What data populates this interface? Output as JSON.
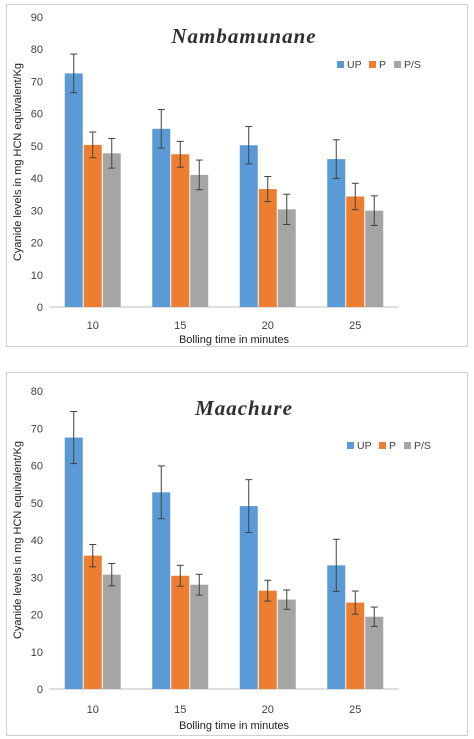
{
  "colors": {
    "UP": "#5b9bd5",
    "P": "#ed7d31",
    "P/S": "#a5a5a5",
    "error_bar": "#404040",
    "axis": "#bfbfbf"
  },
  "chart_data": [
    {
      "type": "bar",
      "title": "Nambamunane",
      "xlabel": "Bolling time in minutes",
      "ylabel": "Cyanide levels in mg HCN equivalent/Kg",
      "categories": [
        "10",
        "15",
        "20",
        "25"
      ],
      "ylim": [
        0,
        90
      ],
      "yticks": [
        0,
        10,
        20,
        30,
        40,
        50,
        60,
        70,
        80,
        90
      ],
      "grid": false,
      "legend_position": "top-right",
      "series": [
        {
          "name": "UP",
          "values": [
            72.5,
            55.3,
            50.2,
            45.9
          ],
          "errors": [
            6.0,
            6.0,
            5.8,
            6.0
          ]
        },
        {
          "name": "P",
          "values": [
            50.3,
            47.4,
            36.6,
            34.3
          ],
          "errors": [
            4.0,
            4.0,
            3.9,
            4.1
          ]
        },
        {
          "name": "P/S",
          "values": [
            47.7,
            41.0,
            30.3,
            29.9
          ],
          "errors": [
            4.6,
            4.6,
            4.7,
            4.6
          ]
        }
      ]
    },
    {
      "type": "bar",
      "title": "Maachure",
      "xlabel": "Bolling time in minutes",
      "ylabel": "Cyanide levels in mg HCN equivalent/Kg",
      "categories": [
        "10",
        "15",
        "20",
        "25"
      ],
      "ylim": [
        0,
        80
      ],
      "yticks": [
        0,
        10,
        20,
        30,
        40,
        50,
        60,
        70,
        80
      ],
      "grid": false,
      "legend_position": "top-right",
      "series": [
        {
          "name": "UP",
          "values": [
            67.5,
            52.8,
            49.1,
            33.2
          ],
          "errors": [
            7.0,
            7.1,
            7.1,
            7.0
          ]
        },
        {
          "name": "P",
          "values": [
            35.8,
            30.4,
            26.4,
            23.2
          ],
          "errors": [
            3.0,
            2.8,
            2.8,
            3.1
          ]
        },
        {
          "name": "P/S",
          "values": [
            30.7,
            28.0,
            24.0,
            19.4
          ],
          "errors": [
            3.0,
            2.8,
            2.6,
            2.6
          ]
        }
      ]
    }
  ]
}
